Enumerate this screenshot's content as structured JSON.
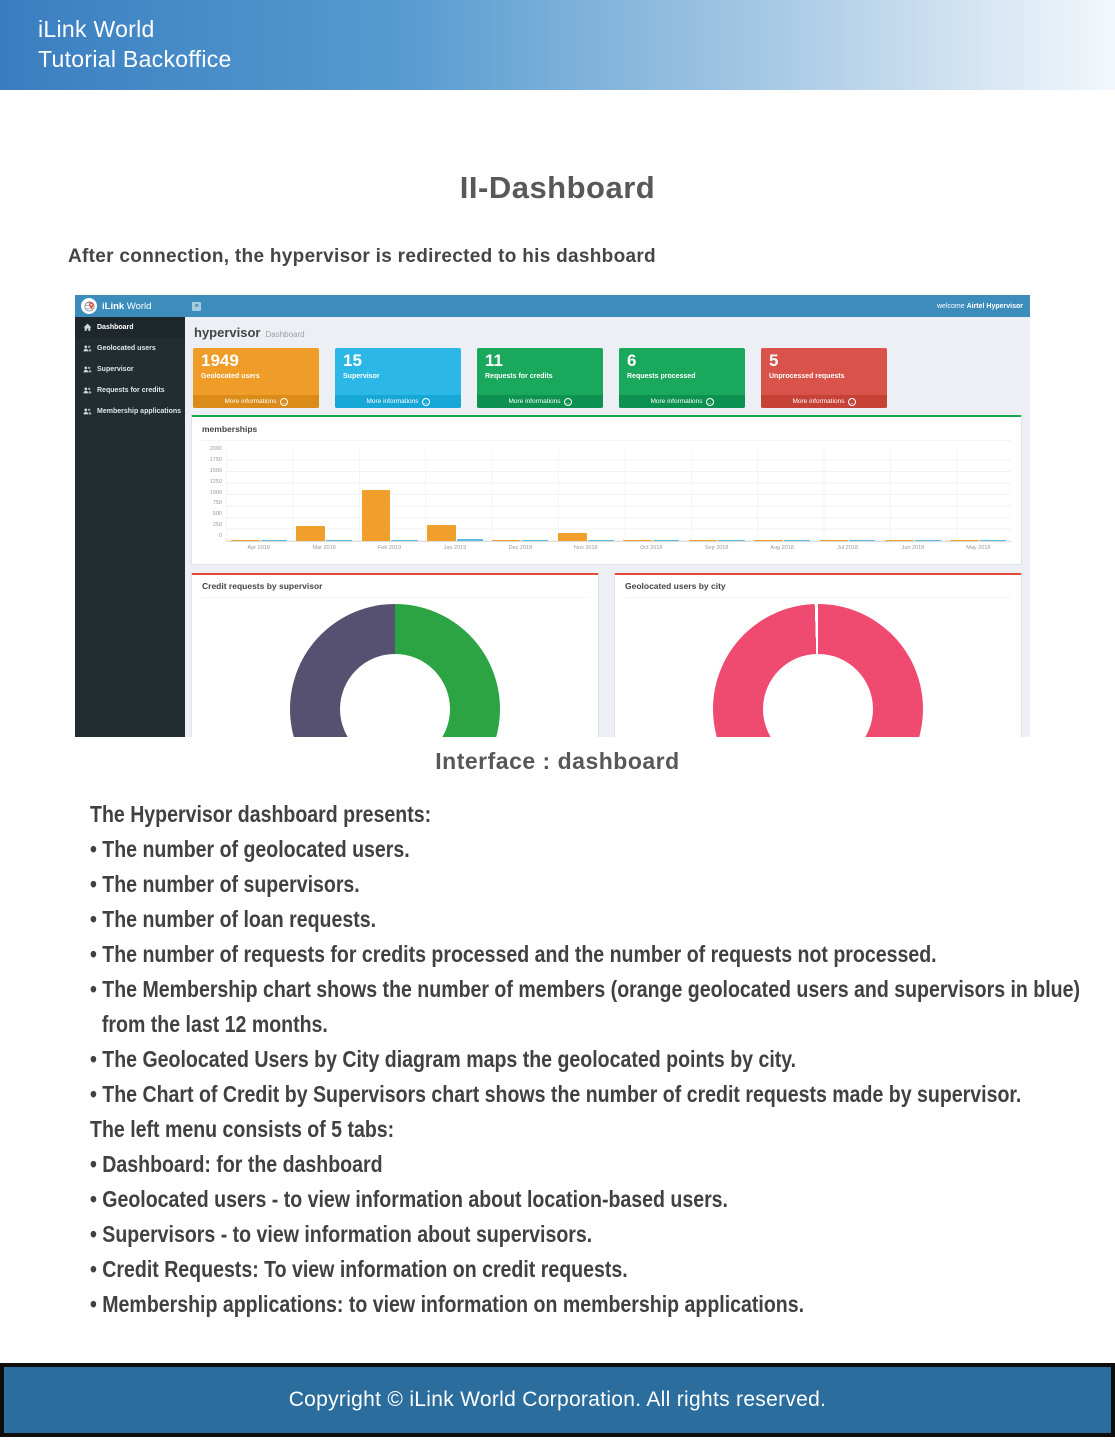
{
  "page": {
    "header": {
      "line1": "iLink World",
      "line2": "Tutorial Backoffice"
    },
    "title": "II-Dashboard",
    "intro": "After connection, the hypervisor is redirected to his dashboard",
    "caption": "Interface : dashboard",
    "footer": "Copyright © iLink World Corporation. All rights reserved."
  },
  "dashboard": {
    "brand": {
      "bold": "iLink",
      "regular": " World"
    },
    "welcome_prefix": "welcome ",
    "welcome_user": "Airtel Hypervisor",
    "page_title": "hypervisor",
    "breadcrumb": "Dashboard",
    "menu": [
      {
        "label": "Dashboard",
        "icon": "home-icon",
        "active": true
      },
      {
        "label": "Geolocated users",
        "icon": "users-icon",
        "active": false
      },
      {
        "label": "Supervisor",
        "icon": "users-icon",
        "active": false
      },
      {
        "label": "Requests for credits",
        "icon": "users-icon",
        "active": false
      },
      {
        "label": "Membership applications",
        "icon": "users-icon",
        "active": false
      }
    ],
    "cards": [
      {
        "value": "1949",
        "label": "Geolocated users",
        "more": "More informations",
        "bg": "#ef9d28",
        "footer_bg": "#db8b17"
      },
      {
        "value": "15",
        "label": "Supervisor",
        "more": "More informations",
        "bg": "#2cb8e6",
        "footer_bg": "#17a7d6"
      },
      {
        "value": "11",
        "label": "Requests for credits",
        "more": "More informations",
        "bg": "#1aa85c",
        "footer_bg": "#0c9150"
      },
      {
        "value": "6",
        "label": "Requests processed",
        "more": "More informations",
        "bg": "#1aa85c",
        "footer_bg": "#0c9150"
      },
      {
        "value": "5",
        "label": "Unprocessed requests",
        "more": "More informations",
        "bg": "#d9534a",
        "footer_bg": "#c64237"
      }
    ],
    "colors": {
      "navbar": "#3c8dbc",
      "sidebar": "#222d32",
      "content_bg": "#ecf0f5",
      "memberships_border": "#19a74e",
      "donut_box_border": "#e14b38"
    }
  },
  "chart_data": [
    {
      "type": "bar",
      "title": "memberships",
      "categories": [
        "Apr 2019",
        "Mar 2019",
        "Feb 2019",
        "Jan 2019",
        "Dec 2018",
        "Nov 2018",
        "Oct 2018",
        "Sep 2018",
        "Aug 2018",
        "Jul 2018",
        "Jun 2018",
        "May 2018"
      ],
      "series": [
        {
          "name": "geolocated users",
          "color": "#f0a02a",
          "values": [
            15,
            330,
            1100,
            350,
            20,
            165,
            15,
            15,
            15,
            15,
            15,
            15
          ]
        },
        {
          "name": "supervisors",
          "color": "#58b9e4",
          "values": [
            20,
            20,
            20,
            40,
            25,
            20,
            20,
            20,
            20,
            20,
            20,
            20
          ]
        }
      ],
      "xlabel": "",
      "ylabel": "",
      "ylim": [
        0,
        2000
      ],
      "yticks": [
        0,
        250,
        500,
        750,
        1000,
        1250,
        1500,
        1750,
        2000
      ],
      "grid": true,
      "legend": "none"
    },
    {
      "type": "pie",
      "title": "Credit requests by supervisor",
      "donut": true,
      "slices": [
        {
          "value": 52.8,
          "color": "#2ca444"
        },
        {
          "value": 47.2,
          "color": "#565071"
        }
      ]
    },
    {
      "type": "pie",
      "title": "Geolocated users by city",
      "donut": true,
      "slices": [
        {
          "value": 99.5,
          "color": "#ef4a70"
        }
      ]
    }
  ],
  "body_lines": [
    {
      "t": "The Hypervisor dashboard presents:",
      "i": false
    },
    {
      "t": "• The number of geolocated users.",
      "i": false
    },
    {
      "t": "• The number of supervisors.",
      "i": false
    },
    {
      "t": "• The number of loan requests.",
      "i": false
    },
    {
      "t": "• The number of requests for credits processed and the number of requests not processed.",
      "i": false
    },
    {
      "t": "• The Membership chart shows the number of members (orange geolocated users and supervisors in blue)",
      "i": false
    },
    {
      "t": "from the last 12 months.",
      "i": true
    },
    {
      "t": "• The Geolocated Users by City diagram maps the geolocated points by city.",
      "i": false
    },
    {
      "t": "• The Chart of Credit by Supervisors chart shows the number of credit requests made by supervisor.",
      "i": false
    },
    {
      "t": "The left menu consists of 5 tabs:",
      "i": false
    },
    {
      "t": "• Dashboard: for the dashboard",
      "i": false
    },
    {
      "t": "• Geolocated users - to view information about location-based users.",
      "i": false
    },
    {
      "t": "• Supervisors - to view information about supervisors.",
      "i": false
    },
    {
      "t": "• Credit Requests: To view information on credit requests.",
      "i": false
    },
    {
      "t": "• Membership applications: to view information on membership applications.",
      "i": false
    }
  ]
}
